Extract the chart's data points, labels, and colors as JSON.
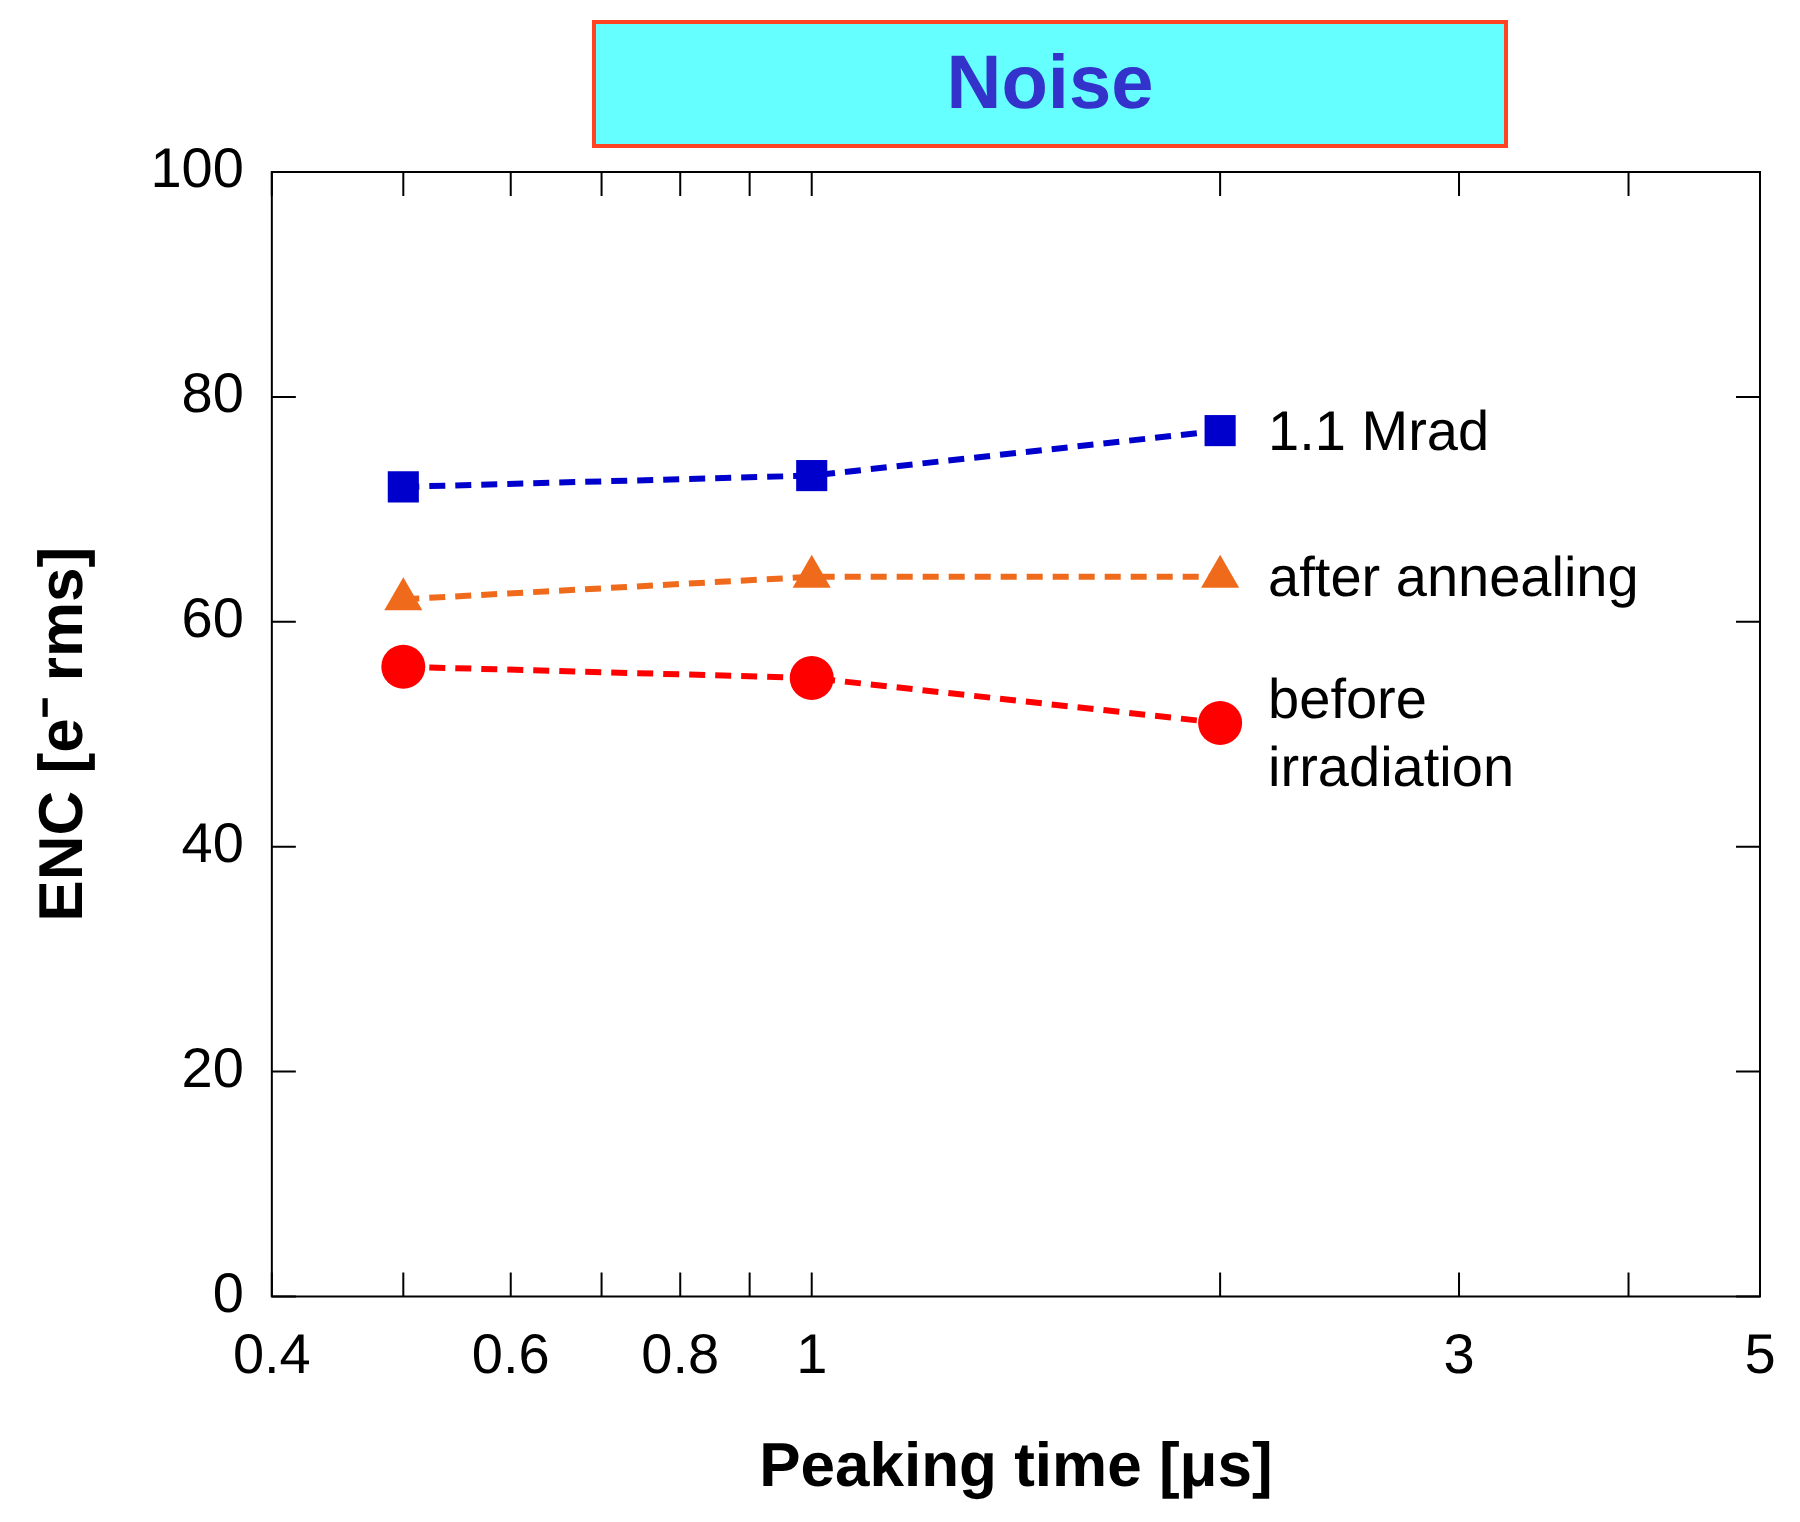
{
  "chart_data": {
    "type": "line",
    "title": "Noise",
    "xlabel": "Peaking time [μs]",
    "ylabel": "ENC [e⁻ rms]",
    "log": "x",
    "xlim": [
      0.4,
      5
    ],
    "ylim": [
      0,
      100
    ],
    "xticks": [
      0.4,
      {
        "value": 0.5,
        "label": null
      },
      0.6,
      {
        "value": 0.7,
        "label": null
      },
      0.8,
      {
        "value": 0.9,
        "label": null
      },
      1,
      {
        "value": 2,
        "label": null
      },
      3,
      {
        "value": 4,
        "label": null
      },
      5
    ],
    "yticks": [
      0,
      20,
      40,
      60,
      80,
      100
    ],
    "x": [
      0.5,
      1,
      2
    ],
    "series": [
      {
        "name": "1.1 Mrad",
        "color": "#0000cc",
        "marker": "square",
        "values": [
          72,
          73,
          77
        ]
      },
      {
        "name": "after annealing",
        "color": "#f06a1c",
        "marker": "triangle",
        "values": [
          62,
          64,
          64
        ]
      },
      {
        "name": "before irradiation",
        "color": "#ff0000",
        "marker": "circle",
        "values": [
          56,
          55,
          51
        ]
      }
    ],
    "line_style": "dashed",
    "grid": false,
    "legend": false
  }
}
